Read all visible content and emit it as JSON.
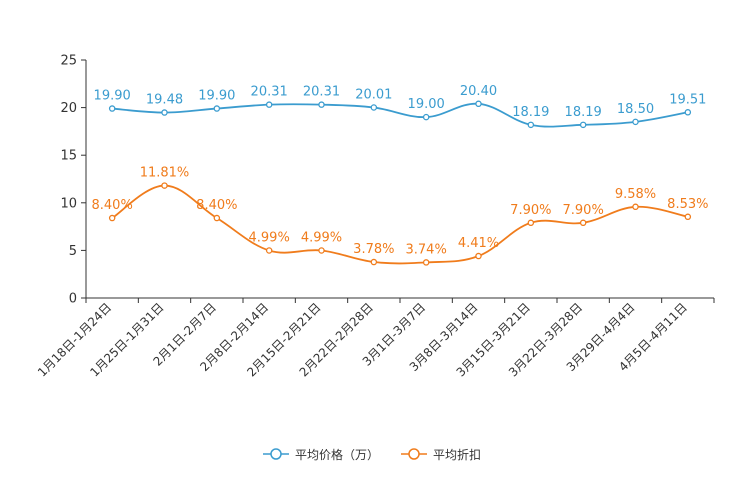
{
  "chart_data": {
    "type": "line",
    "categories": [
      "1月18日-1月24日",
      "1月25日-1月31日",
      "2月1日-2月7日",
      "2月8日-2月14日",
      "2月15日-2月21日",
      "2月22日-2月28日",
      "3月1日-3月7日",
      "3月8日-3月14日",
      "3月15日-3月21日",
      "3月22日-3月28日",
      "3月29日-4月4日",
      "4月5日-4月11日"
    ],
    "ylim": [
      0,
      25
    ],
    "yticks": [
      0,
      5,
      10,
      15,
      20,
      25
    ],
    "series": [
      {
        "name": "平均价格（万）",
        "color": "#3b9ccf",
        "values": [
          19.9,
          19.48,
          19.9,
          20.31,
          20.31,
          20.01,
          19.0,
          20.4,
          18.19,
          18.19,
          18.5,
          19.51
        ],
        "labels": [
          "19.90",
          "19.48",
          "19.90",
          "20.31",
          "20.31",
          "20.01",
          "19.00",
          "20.40",
          "18.19",
          "18.19",
          "18.50",
          "19.51"
        ]
      },
      {
        "name": "平均折扣",
        "color": "#f07c1c",
        "values": [
          8.4,
          11.81,
          8.4,
          4.99,
          4.99,
          3.78,
          3.74,
          4.41,
          7.9,
          7.9,
          9.58,
          8.53
        ],
        "labels": [
          "8.40%",
          "11.81%",
          "8.40%",
          "4.99%",
          "4.99%",
          "3.78%",
          "3.74%",
          "4.41%",
          "7.90%",
          "7.90%",
          "9.58%",
          "8.53%"
        ]
      }
    ],
    "legend_position": "bottom-center",
    "grid": false
  }
}
